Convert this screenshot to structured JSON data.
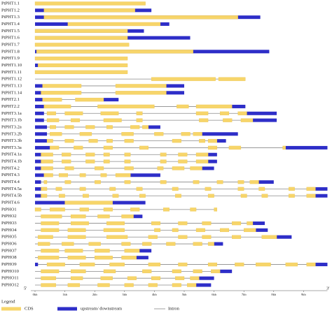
{
  "colors": {
    "cds": "#f7d56a",
    "utr": "#2e2ec8",
    "intron": "#8a8a8a"
  },
  "axis": {
    "xlim": [
      0,
      9.8
    ],
    "start": "5'",
    "end": "3'",
    "ticks": [
      {
        "value": 0,
        "label": "0kb"
      },
      {
        "value": 1,
        "label": "1kb"
      },
      {
        "value": 2,
        "label": "2kb"
      },
      {
        "value": 3,
        "label": "3kb"
      },
      {
        "value": 4,
        "label": "4kb"
      },
      {
        "value": 5,
        "label": "5kb"
      },
      {
        "value": 6,
        "label": "6kb"
      },
      {
        "value": 7,
        "label": "7kb"
      },
      {
        "value": 8,
        "label": "8kb"
      },
      {
        "value": 9,
        "label": "9kb"
      }
    ]
  },
  "legend": {
    "title": "Legend",
    "items": [
      {
        "label": "CDS",
        "kind": "cds"
      },
      {
        "label": "upstream/ downstream",
        "kind": "utr"
      },
      {
        "label": "Intron",
        "kind": "intron"
      }
    ]
  },
  "genes": [
    {
      "name": "PtPHT1.1",
      "span": [
        0,
        3.7
      ],
      "cds": [
        [
          0,
          3.7
        ]
      ]
    },
    {
      "name": "PtPHT1.2",
      "span": [
        0,
        3.9
      ],
      "utr": [
        [
          0,
          3.9
        ]
      ],
      "cds": [
        [
          0.3,
          3.35
        ]
      ]
    },
    {
      "name": "PtPHT1.3",
      "span": [
        0,
        7.55
      ],
      "utr": [
        [
          0,
          7.55
        ]
      ],
      "cds": [
        [
          0.3,
          6.8
        ]
      ]
    },
    {
      "name": "PtPHT1.4",
      "span": [
        0,
        4.5
      ],
      "utr": [
        [
          0,
          4.5
        ]
      ],
      "cds": [
        [
          1.1,
          4.2
        ]
      ]
    },
    {
      "name": "PtPHT1.5",
      "span": [
        0,
        3.65
      ],
      "utr": [
        [
          0,
          3.65
        ]
      ],
      "cds": [
        [
          0,
          3.1
        ]
      ]
    },
    {
      "name": "PtPHT1.6",
      "span": [
        0,
        5.2
      ],
      "utr": [
        [
          0,
          5.2
        ]
      ],
      "cds": [
        [
          0,
          3.1
        ]
      ]
    },
    {
      "name": "PtPHT1.7",
      "span": [
        0,
        3.15
      ],
      "cds": [
        [
          0,
          3.15
        ]
      ]
    },
    {
      "name": "PtPHT1.8",
      "span": [
        0,
        7.85
      ],
      "utr": [
        [
          0,
          7.85
        ]
      ],
      "cds": [
        [
          0.05,
          5.3
        ]
      ]
    },
    {
      "name": "PtPHT1.9",
      "span": [
        0,
        3.1
      ],
      "cds": [
        [
          0,
          3.1
        ]
      ]
    },
    {
      "name": "PtPHT1.10",
      "span": [
        0,
        3.1
      ],
      "utr": [
        [
          0,
          0.1
        ]
      ],
      "cds": [
        [
          0.1,
          3.1
        ]
      ]
    },
    {
      "name": "PtPHT1.11",
      "span": [
        0,
        3.1
      ],
      "cds": [
        [
          0,
          3.1
        ]
      ]
    },
    {
      "name": "PtPHT1.12",
      "span": [
        0,
        7.05
      ],
      "cds": [
        [
          3.9,
          6.05
        ],
        [
          6.15,
          7.05
        ]
      ]
    },
    {
      "name": "PtPHT1.13",
      "span": [
        0,
        5.0
      ],
      "utr": [
        [
          0,
          0.25
        ],
        [
          4.4,
          5.0
        ]
      ],
      "cds": [
        [
          0.25,
          1.55
        ],
        [
          2.7,
          4.4
        ]
      ]
    },
    {
      "name": "PtPHT1.14",
      "span": [
        0,
        5.0
      ],
      "utr": [
        [
          0,
          0.2
        ],
        [
          4.4,
          5.0
        ]
      ],
      "cds": [
        [
          0.2,
          1.55
        ],
        [
          2.7,
          4.4
        ]
      ]
    },
    {
      "name": "PtPHT2.1",
      "span": [
        0,
        2.8
      ],
      "utr": [
        [
          0,
          0.25
        ],
        [
          2.3,
          2.8
        ]
      ],
      "cds": [
        [
          0.25,
          0.9
        ],
        [
          1.35,
          2.3
        ]
      ]
    },
    {
      "name": "PtPHT2.2",
      "span": [
        0,
        7.05
      ],
      "utr": [
        [
          0,
          0.3
        ],
        [
          6.6,
          7.05
        ]
      ],
      "cds": [
        [
          0.3,
          1.2
        ],
        [
          2.1,
          4.0
        ],
        [
          4.75,
          5.15
        ],
        [
          5.4,
          6.6
        ]
      ]
    },
    {
      "name": "PtPHT3.1a",
      "span": [
        0,
        8.1
      ],
      "utr": [
        [
          0,
          0.3
        ],
        [
          7.1,
          8.1
        ]
      ],
      "cds": [
        [
          0.4,
          0.7
        ],
        [
          1.0,
          1.6
        ],
        [
          2.2,
          2.8
        ],
        [
          3.4,
          3.6
        ],
        [
          5.4,
          5.8
        ],
        [
          6.2,
          6.5
        ],
        [
          6.8,
          7.1
        ]
      ]
    },
    {
      "name": "PtPHT3.1b",
      "span": [
        0,
        8.1
      ],
      "utr": [
        [
          0,
          0.3
        ],
        [
          7.3,
          8.1
        ]
      ],
      "cds": [
        [
          0.4,
          0.8
        ],
        [
          1.2,
          1.5
        ],
        [
          2.3,
          2.9
        ],
        [
          3.4,
          3.6
        ],
        [
          5.5,
          5.8
        ],
        [
          6.3,
          6.6
        ],
        [
          6.9,
          7.3
        ]
      ]
    },
    {
      "name": "PtPHT3.2a",
      "span": [
        0,
        4.2
      ],
      "utr": [
        [
          0,
          0.4
        ],
        [
          3.8,
          4.2
        ]
      ],
      "cds": [
        [
          0.5,
          0.7
        ],
        [
          1.0,
          1.3
        ],
        [
          1.7,
          2.0
        ],
        [
          2.4,
          2.6
        ],
        [
          3.2,
          3.5
        ],
        [
          3.6,
          3.8
        ]
      ]
    },
    {
      "name": "PtPHT3.2b",
      "span": [
        0,
        6.8
      ],
      "utr": [
        [
          0,
          0.4
        ],
        [
          5.6,
          6.8
        ]
      ],
      "cds": [
        [
          0.5,
          0.9
        ],
        [
          1.5,
          1.9
        ],
        [
          2.9,
          3.3
        ],
        [
          4.0,
          4.3
        ],
        [
          4.9,
          5.2
        ],
        [
          5.3,
          5.6
        ]
      ]
    },
    {
      "name": "PtPHT3.3b",
      "span": [
        0,
        6.4
      ],
      "utr": [
        [
          0,
          0.4
        ],
        [
          6.1,
          6.4
        ]
      ],
      "cds": [
        [
          0.4,
          0.6
        ],
        [
          1.0,
          1.3
        ],
        [
          1.8,
          2.1
        ],
        [
          2.4,
          2.6
        ],
        [
          3.0,
          3.3
        ],
        [
          4.6,
          4.9
        ],
        [
          5.5,
          5.7
        ],
        [
          5.8,
          6.1
        ]
      ]
    },
    {
      "name": "PtPHT3.3a",
      "span": [
        0,
        9.8
      ],
      "utr": [
        [
          0,
          0.5
        ],
        [
          8.4,
          9.8
        ]
      ],
      "cds": [
        [
          0.5,
          0.8
        ],
        [
          1.3,
          1.6
        ],
        [
          2.3,
          2.6
        ],
        [
          3.5,
          3.8
        ],
        [
          5.8,
          6.1
        ],
        [
          6.5,
          6.9
        ],
        [
          8.3,
          8.4
        ]
      ]
    },
    {
      "name": "PtPHT4.1a",
      "span": [
        0,
        6.1
      ],
      "utr": [
        [
          0,
          0.2
        ],
        [
          5.8,
          6.1
        ]
      ],
      "cds": [
        [
          0.2,
          0.6
        ],
        [
          0.9,
          1.2
        ],
        [
          1.7,
          2.0
        ],
        [
          2.3,
          2.5
        ],
        [
          3.0,
          3.2
        ],
        [
          4.2,
          4.4
        ],
        [
          4.8,
          5.1
        ],
        [
          5.4,
          5.8
        ]
      ]
    },
    {
      "name": "PtPHT4.1b",
      "span": [
        0,
        6.1
      ],
      "utr": [
        [
          0,
          0.2
        ],
        [
          5.8,
          6.1
        ]
      ],
      "cds": [
        [
          0.2,
          0.6
        ],
        [
          0.9,
          1.2
        ],
        [
          1.7,
          2.0
        ],
        [
          2.3,
          2.5
        ],
        [
          3.0,
          3.2
        ],
        [
          4.2,
          4.4
        ],
        [
          4.8,
          5.1
        ],
        [
          5.4,
          5.8
        ]
      ]
    },
    {
      "name": "PtPHT4.2",
      "span": [
        0,
        6.0
      ],
      "utr": [
        [
          0,
          0.2
        ],
        [
          5.6,
          6.0
        ]
      ],
      "cds": [
        [
          0.2,
          0.6
        ],
        [
          1.0,
          1.3
        ],
        [
          2.0,
          2.3
        ],
        [
          3.0,
          3.3
        ],
        [
          4.1,
          4.3
        ],
        [
          4.6,
          5.0
        ],
        [
          5.2,
          5.6
        ]
      ]
    },
    {
      "name": "PtPHT4.3",
      "span": [
        0,
        4.2
      ],
      "utr": [
        [
          0,
          0.3
        ],
        [
          3.2,
          4.2
        ]
      ],
      "cds": [
        [
          0.3,
          0.6
        ],
        [
          0.8,
          1.1
        ],
        [
          1.5,
          1.7
        ],
        [
          2.2,
          2.4
        ],
        [
          2.7,
          3.2
        ]
      ]
    },
    {
      "name": "PtPHT4.4",
      "span": [
        0,
        8.0
      ],
      "utr": [
        [
          0,
          0.2
        ],
        [
          7.5,
          8.0
        ]
      ],
      "cds": [
        [
          0.3,
          0.4
        ],
        [
          1.0,
          1.2
        ],
        [
          2.0,
          2.2
        ],
        [
          3.0,
          3.2
        ],
        [
          4.2,
          4.4
        ],
        [
          5.3,
          5.5
        ],
        [
          6.1,
          6.3
        ],
        [
          6.8,
          7.0
        ],
        [
          7.2,
          7.5
        ]
      ]
    },
    {
      "name": "PtPHT4.5a",
      "span": [
        0,
        9.8
      ],
      "utr": [
        [
          0,
          0.2
        ],
        [
          9.4,
          9.8
        ]
      ],
      "cds": [
        [
          0.2,
          0.4
        ],
        [
          0.7,
          0.9
        ],
        [
          1.5,
          1.7
        ],
        [
          2.5,
          2.7
        ],
        [
          3.4,
          3.6
        ],
        [
          4.6,
          4.8
        ],
        [
          5.7,
          5.9
        ],
        [
          6.8,
          7.0
        ],
        [
          7.5,
          7.7
        ],
        [
          8.5,
          8.7
        ],
        [
          9.1,
          9.4
        ]
      ]
    },
    {
      "name": "PtPHT4.5b",
      "span": [
        0,
        9.8
      ],
      "utr": [
        [
          0,
          0.2
        ],
        [
          9.4,
          9.8
        ]
      ],
      "cds": [
        [
          0.2,
          0.4
        ],
        [
          0.8,
          1.0
        ],
        [
          1.6,
          1.8
        ],
        [
          2.6,
          2.8
        ],
        [
          3.5,
          3.7
        ],
        [
          4.7,
          4.9
        ],
        [
          5.8,
          6.0
        ],
        [
          6.9,
          7.1
        ],
        [
          7.6,
          7.8
        ],
        [
          8.5,
          8.7
        ],
        [
          9.1,
          9.4
        ]
      ]
    },
    {
      "name": "PtPHT4.6",
      "span": [
        0,
        3.7
      ],
      "utr": [
        [
          0,
          1.0
        ],
        [
          2.6,
          3.7
        ]
      ],
      "cds": [
        [
          1.0,
          2.6
        ]
      ]
    },
    {
      "name": "PtPHO1",
      "span": [
        0,
        6.1
      ],
      "cds": [
        [
          0,
          0.2
        ],
        [
          0.5,
          1.0
        ],
        [
          1.5,
          1.8
        ],
        [
          2.3,
          2.6
        ],
        [
          3.2,
          3.5
        ],
        [
          4.3,
          4.5
        ],
        [
          5.2,
          5.4
        ],
        [
          6.0,
          6.1
        ]
      ]
    },
    {
      "name": "PtPHO2",
      "span": [
        0,
        3.6
      ],
      "utr": [
        [
          3.3,
          3.6
        ]
      ],
      "cds": [
        [
          0.2,
          0.9
        ],
        [
          1.2,
          1.7
        ],
        [
          2.1,
          2.5
        ],
        [
          2.9,
          3.3
        ]
      ]
    },
    {
      "name": "PtPHO3",
      "span": [
        0,
        7.7
      ],
      "utr": [
        [
          7.3,
          7.7
        ]
      ],
      "cds": [
        [
          0.2,
          0.8
        ],
        [
          1.2,
          1.8
        ],
        [
          2.4,
          3.0
        ],
        [
          3.9,
          4.2
        ],
        [
          4.8,
          5.1
        ],
        [
          5.6,
          5.9
        ],
        [
          6.6,
          6.9
        ],
        [
          7.1,
          7.3
        ]
      ]
    },
    {
      "name": "PtPHO4",
      "span": [
        0,
        7.8
      ],
      "utr": [
        [
          7.4,
          7.8
        ]
      ],
      "cds": [
        [
          0.2,
          0.8
        ],
        [
          1.1,
          1.7
        ],
        [
          2.3,
          3.0
        ],
        [
          4.0,
          4.2
        ],
        [
          4.6,
          4.8
        ],
        [
          5.4,
          5.7
        ],
        [
          6.2,
          6.5
        ],
        [
          7.0,
          7.4
        ]
      ]
    },
    {
      "name": "PtPHO5",
      "span": [
        0,
        8.6
      ],
      "utr": [
        [
          8.1,
          8.6
        ]
      ],
      "cds": [
        [
          0.1,
          0.6
        ],
        [
          1.1,
          1.7
        ],
        [
          2.4,
          3.1
        ],
        [
          3.8,
          4.1
        ],
        [
          4.8,
          5.1
        ],
        [
          5.6,
          5.9
        ],
        [
          6.6,
          6.9
        ],
        [
          7.6,
          8.1
        ]
      ]
    },
    {
      "name": "PtPHO6",
      "span": [
        0,
        6.3
      ],
      "utr": [
        [
          6.0,
          6.3
        ]
      ],
      "cds": [
        [
          0.1,
          0.5
        ],
        [
          0.9,
          1.3
        ],
        [
          1.8,
          2.2
        ],
        [
          2.9,
          3.2
        ],
        [
          3.6,
          3.9
        ],
        [
          4.4,
          4.7
        ],
        [
          5.3,
          5.6
        ],
        [
          5.8,
          6.0
        ]
      ]
    },
    {
      "name": "PtPHO7",
      "span": [
        0,
        3.9
      ],
      "utr": [
        [
          3.5,
          3.9
        ]
      ],
      "cds": [
        [
          0.2,
          0.8
        ],
        [
          1.0,
          1.6
        ],
        [
          2.0,
          2.5
        ],
        [
          3.0,
          3.5
        ]
      ]
    },
    {
      "name": "PtPHO8",
      "span": [
        0,
        3.8
      ],
      "utr": [
        [
          3.4,
          3.8
        ]
      ],
      "cds": [
        [
          0.1,
          0.8
        ],
        [
          1.1,
          1.7
        ],
        [
          2.0,
          2.6
        ],
        [
          2.9,
          3.4
        ]
      ]
    },
    {
      "name": "PtPHO9",
      "span": [
        0,
        9.8
      ],
      "utr": [
        [
          0,
          0.1
        ],
        [
          9.4,
          9.8
        ]
      ],
      "cds": [
        [
          0.4,
          1.0
        ],
        [
          1.5,
          2.0
        ],
        [
          2.5,
          3.0
        ],
        [
          3.8,
          4.2
        ],
        [
          4.8,
          5.1
        ],
        [
          5.8,
          6.1
        ],
        [
          6.7,
          7.0
        ],
        [
          7.4,
          7.9
        ],
        [
          8.4,
          8.8
        ],
        [
          9.1,
          9.4
        ]
      ]
    },
    {
      "name": "PtPHO10",
      "span": [
        0,
        6.6
      ],
      "utr": [
        [
          6.2,
          6.6
        ]
      ],
      "cds": [
        [
          0.2,
          0.8
        ],
        [
          1.2,
          1.7
        ],
        [
          2.3,
          2.7
        ],
        [
          3.6,
          3.9
        ],
        [
          4.6,
          4.9
        ],
        [
          5.3,
          5.6
        ],
        [
          5.9,
          6.2
        ]
      ]
    },
    {
      "name": "PtPHO11",
      "span": [
        0,
        6.0
      ],
      "utr": [
        [
          5.5,
          6.0
        ]
      ],
      "cds": [
        [
          0.2,
          0.7
        ],
        [
          1.2,
          1.6
        ],
        [
          2.2,
          2.6
        ],
        [
          3.1,
          3.4
        ],
        [
          3.9,
          4.2
        ],
        [
          4.7,
          5.0
        ],
        [
          5.2,
          5.5
        ]
      ]
    },
    {
      "name": "PtPHO12",
      "span": [
        0,
        5.9
      ],
      "utr": [
        [
          5.4,
          5.9
        ]
      ],
      "cds": [
        [
          0.2,
          0.7
        ],
        [
          1.1,
          1.5
        ],
        [
          2.1,
          2.5
        ],
        [
          3.0,
          3.3
        ],
        [
          3.8,
          4.1
        ],
        [
          4.6,
          4.9
        ],
        [
          5.1,
          5.4
        ]
      ]
    }
  ]
}
